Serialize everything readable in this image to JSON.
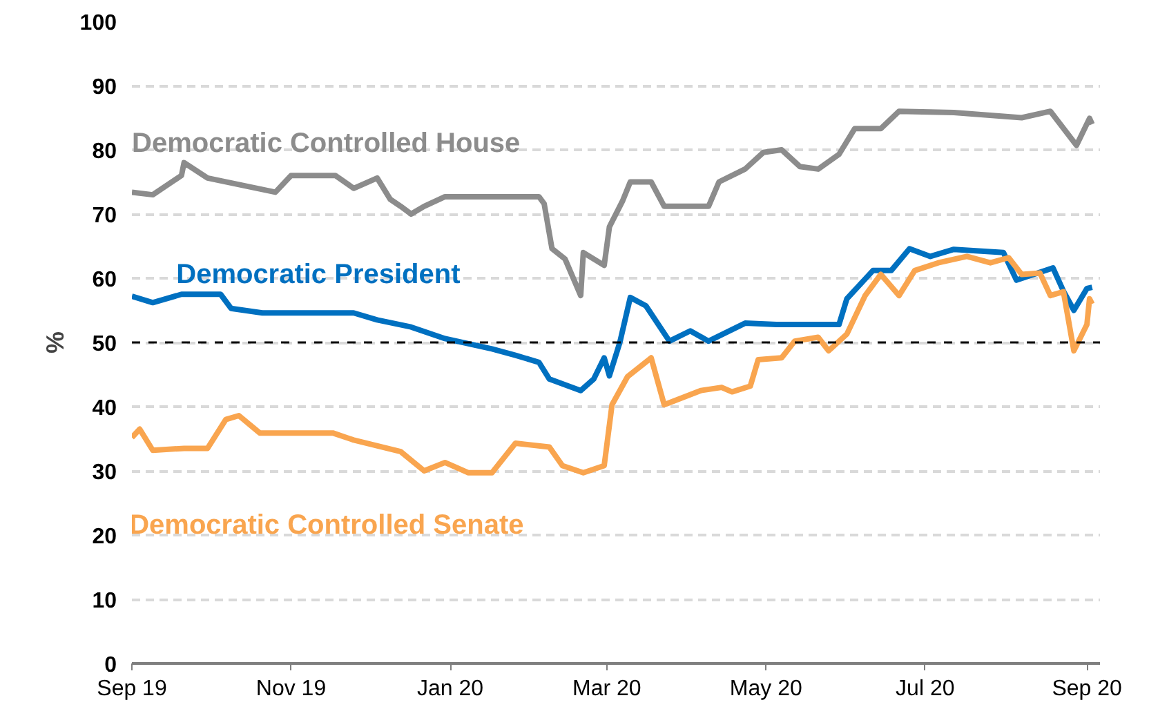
{
  "chart_data": {
    "type": "line",
    "ylabel": "%",
    "xlim": [
      "2019-09-01",
      "2020-09-06"
    ],
    "xticks": [
      {
        "value": "2019-09-01",
        "label": "Sep 19"
      },
      {
        "value": "2019-11-01",
        "label": "Nov 19"
      },
      {
        "value": "2020-01-01",
        "label": "Jan 20"
      },
      {
        "value": "2020-03-01",
        "label": "Mar 20"
      },
      {
        "value": "2020-05-01",
        "label": "May 20"
      },
      {
        "value": "2020-07-01",
        "label": "Jul 20"
      },
      {
        "value": "2020-09-01",
        "label": "Sep 20"
      }
    ],
    "ylim": [
      0,
      100
    ],
    "yticks": [
      0,
      10,
      20,
      30,
      40,
      50,
      60,
      70,
      80,
      90,
      100
    ],
    "grid": "y",
    "line_style": "solid",
    "ref_lines": [
      {
        "axis": "y",
        "value": 50,
        "color": "#000000",
        "line_style": "dashed"
      }
    ],
    "series": [
      {
        "name": "Democratic Controlled House",
        "color": "#8c8c8c",
        "x": [
          "2019-09-01",
          "2019-09-09",
          "2019-09-20",
          "2019-09-21",
          "2019-09-30",
          "2019-10-26",
          "2019-11-01",
          "2019-11-18",
          "2019-11-25",
          "2019-12-04",
          "2019-12-09",
          "2019-12-13",
          "2019-12-17",
          "2019-12-22",
          "2019-12-30",
          "2020-02-04",
          "2020-02-06",
          "2020-02-09",
          "2020-02-14",
          "2020-02-20",
          "2020-02-21",
          "2020-02-29",
          "2020-03-02",
          "2020-03-07",
          "2020-03-10",
          "2020-03-18",
          "2020-03-23",
          "2020-04-09",
          "2020-04-13",
          "2020-04-23",
          "2020-04-30",
          "2020-05-07",
          "2020-05-14",
          "2020-05-21",
          "2020-05-29",
          "2020-06-04",
          "2020-06-14",
          "2020-06-21",
          "2020-07-12",
          "2020-08-07",
          "2020-08-18",
          "2020-08-28",
          "2020-09-02",
          "2020-09-03"
        ],
        "values": [
          73.4,
          73,
          76,
          78,
          75.6,
          73.4,
          76,
          76,
          74,
          75.6,
          72.3,
          71.2,
          70,
          71.2,
          72.7,
          72.7,
          71.6,
          64.6,
          63,
          57.3,
          64,
          62,
          68,
          72,
          75,
          75,
          71.2,
          71.2,
          75,
          77,
          79.6,
          80,
          77.4,
          77,
          79.3,
          83.3,
          83.3,
          86,
          85.8,
          85,
          86,
          80.7,
          84.9,
          84
        ]
      },
      {
        "name": "Democratic President",
        "color": "#0070c0",
        "x": [
          "2019-09-01",
          "2019-09-09",
          "2019-09-20",
          "2019-10-05",
          "2019-10-09",
          "2019-10-21",
          "2019-11-25",
          "2019-12-04",
          "2019-12-17",
          "2019-12-30",
          "2020-01-17",
          "2020-01-26",
          "2020-02-04",
          "2020-02-08",
          "2020-02-20",
          "2020-02-25",
          "2020-02-29",
          "2020-03-02",
          "2020-03-06",
          "2020-03-10",
          "2020-03-16",
          "2020-03-25",
          "2020-04-02",
          "2020-04-09",
          "2020-04-23",
          "2020-05-05",
          "2020-05-29",
          "2020-06-01",
          "2020-06-11",
          "2020-06-18",
          "2020-06-25",
          "2020-07-03",
          "2020-07-12",
          "2020-07-31",
          "2020-08-05",
          "2020-08-19",
          "2020-08-23",
          "2020-08-27",
          "2020-09-01",
          "2020-09-03"
        ],
        "values": [
          57.2,
          56.2,
          57.5,
          57.5,
          55.3,
          54.6,
          54.6,
          53.5,
          52.4,
          50.6,
          49,
          48,
          46.9,
          44.3,
          42.5,
          44.3,
          47.6,
          44.8,
          50,
          57,
          55.7,
          50.2,
          51.8,
          50.2,
          53,
          52.8,
          52.8,
          56.8,
          61.2,
          61.2,
          64.6,
          63.4,
          64.5,
          64,
          59.7,
          61.6,
          58,
          55,
          58.4,
          58.6
        ]
      },
      {
        "name": "Democratic Controlled Senate",
        "color": "#f9a54f",
        "x": [
          "2019-09-01",
          "2019-09-04",
          "2019-09-09",
          "2019-09-21",
          "2019-09-30",
          "2019-10-07",
          "2019-10-12",
          "2019-10-20",
          "2019-10-30",
          "2019-11-17",
          "2019-11-25",
          "2019-12-13",
          "2019-12-22",
          "2019-12-30",
          "2020-01-08",
          "2020-01-17",
          "2020-01-26",
          "2020-02-08",
          "2020-02-13",
          "2020-02-21",
          "2020-02-29",
          "2020-03-03",
          "2020-03-09",
          "2020-03-18",
          "2020-03-23",
          "2020-04-06",
          "2020-04-14",
          "2020-04-18",
          "2020-04-25",
          "2020-04-28",
          "2020-05-07",
          "2020-05-12",
          "2020-05-21",
          "2020-05-25",
          "2020-06-01",
          "2020-06-08",
          "2020-06-14",
          "2020-06-21",
          "2020-06-27",
          "2020-07-06",
          "2020-07-17",
          "2020-07-26",
          "2020-08-02",
          "2020-08-07",
          "2020-08-14",
          "2020-08-18",
          "2020-08-23",
          "2020-08-27",
          "2020-09-01",
          "2020-09-02",
          "2020-09-03"
        ],
        "values": [
          35.2,
          36.5,
          33.2,
          33.5,
          33.5,
          38,
          38.6,
          35.9,
          35.9,
          35.9,
          34.8,
          33,
          30,
          31.3,
          29.7,
          29.7,
          34.3,
          33.7,
          30.8,
          29.7,
          30.8,
          40.3,
          44.7,
          47.6,
          40.3,
          42.5,
          43,
          42.3,
          43.2,
          47.3,
          47.6,
          50.2,
          50.8,
          48.7,
          51.3,
          57.3,
          60.6,
          57.3,
          61.2,
          62.4,
          63.4,
          62.4,
          63.2,
          60.6,
          60.8,
          57.3,
          57.9,
          48.7,
          52.8,
          56.8,
          56
        ]
      }
    ]
  }
}
